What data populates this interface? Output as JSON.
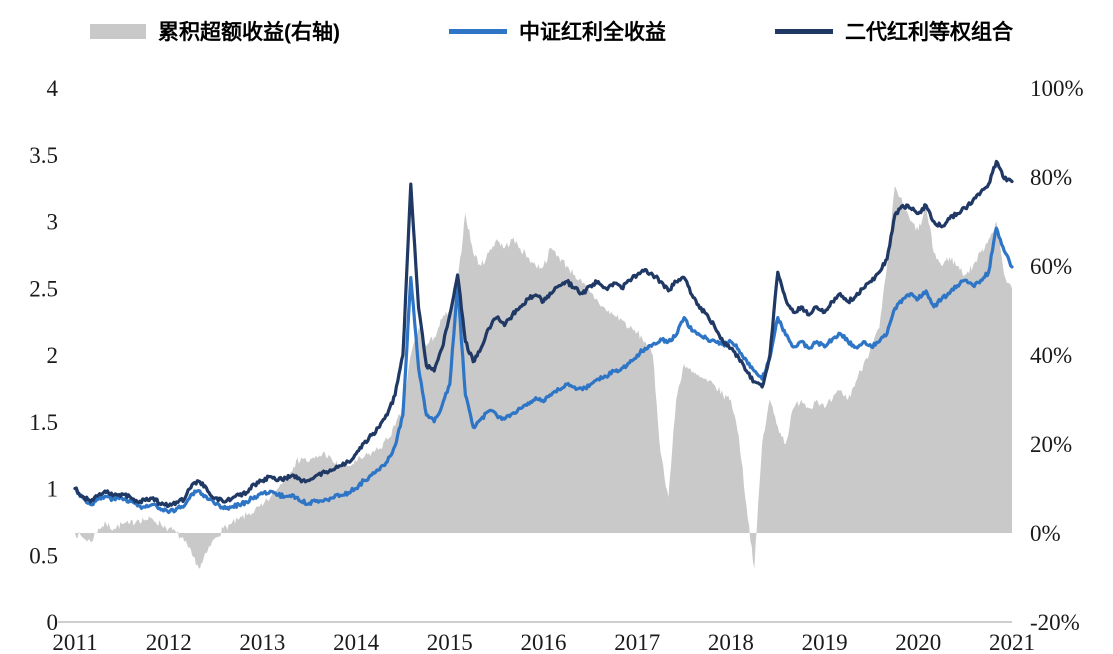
{
  "chart_data": {
    "type": "line",
    "title": "",
    "x_axis": {
      "tick_values": [
        2011,
        2012,
        2013,
        2014,
        2015,
        2016,
        2017,
        2018,
        2019,
        2020,
        2021
      ],
      "tick_labels": [
        "2011",
        "2012",
        "2013",
        "2014",
        "2015",
        "2016",
        "2017",
        "2018",
        "2019",
        "2020",
        "2021"
      ],
      "start_year": 2011,
      "end_year": 2021,
      "step_months": 1
    },
    "left_axis": {
      "min": 0,
      "max": 4,
      "tick_values": [
        0,
        0.5,
        1,
        1.5,
        2,
        2.5,
        3,
        3.5,
        4
      ],
      "tick_labels": [
        "0",
        "0.5",
        "1",
        "1.5",
        "2",
        "2.5",
        "3",
        "3.5",
        "4"
      ]
    },
    "right_axis": {
      "min": -20,
      "max": 100,
      "tick_values": [
        -20,
        0,
        20,
        40,
        60,
        80,
        100
      ],
      "tick_labels": [
        "-20%",
        "0%",
        "20%",
        "40%",
        "60%",
        "80%",
        "100%"
      ]
    },
    "legend_position": "top",
    "grid": false,
    "series": [
      {
        "name": "累积超额收益(右轴)",
        "kind": "area",
        "axis": "right",
        "color": "#c9c9c9",
        "values": [
          0,
          -1,
          -2,
          1,
          2,
          1,
          2,
          2,
          3,
          3,
          3,
          2,
          1,
          0,
          -2,
          -5,
          -8,
          -4,
          -1,
          1,
          2,
          3,
          4,
          5,
          6,
          8,
          10,
          13,
          15,
          17,
          16,
          17,
          18,
          16,
          15,
          15,
          16,
          17,
          18,
          19,
          21,
          24,
          28,
          40,
          46,
          42,
          44,
          48,
          50,
          56,
          72,
          63,
          60,
          63,
          66,
          64,
          66,
          64,
          62,
          60,
          60,
          64,
          62,
          60,
          58,
          56,
          54,
          52,
          50,
          49,
          48,
          46,
          45,
          43,
          40,
          18,
          8,
          30,
          38,
          36,
          35,
          34,
          33,
          31,
          30,
          22,
          6,
          -8,
          20,
          30,
          24,
          20,
          28,
          30,
          28,
          30,
          28,
          30,
          32,
          30,
          34,
          38,
          42,
          46,
          60,
          78,
          74,
          70,
          68,
          73,
          63,
          60,
          62,
          60,
          58,
          60,
          63,
          66,
          70,
          58,
          55
        ]
      },
      {
        "name": "中证红利全收益",
        "kind": "line",
        "axis": "left",
        "color": "#2e75c6",
        "values": [
          1.0,
          0.93,
          0.88,
          0.92,
          0.94,
          0.92,
          0.93,
          0.91,
          0.87,
          0.86,
          0.88,
          0.84,
          0.82,
          0.85,
          0.87,
          0.96,
          0.98,
          0.92,
          0.88,
          0.85,
          0.86,
          0.88,
          0.9,
          0.94,
          0.96,
          0.98,
          0.95,
          0.94,
          0.95,
          0.9,
          0.89,
          0.91,
          0.92,
          0.93,
          0.95,
          0.97,
          1.0,
          1.06,
          1.1,
          1.14,
          1.2,
          1.32,
          1.55,
          2.58,
          1.9,
          1.55,
          1.5,
          1.62,
          1.78,
          2.52,
          1.7,
          1.46,
          1.52,
          1.58,
          1.55,
          1.52,
          1.56,
          1.6,
          1.64,
          1.68,
          1.65,
          1.7,
          1.74,
          1.78,
          1.76,
          1.74,
          1.78,
          1.82,
          1.84,
          1.88,
          1.9,
          1.94,
          2.0,
          2.05,
          2.08,
          2.12,
          2.1,
          2.15,
          2.28,
          2.18,
          2.15,
          2.12,
          2.1,
          2.08,
          2.1,
          2.04,
          1.96,
          1.88,
          1.82,
          1.98,
          2.28,
          2.15,
          2.06,
          2.1,
          2.05,
          2.1,
          2.06,
          2.12,
          2.16,
          2.1,
          2.06,
          2.1,
          2.06,
          2.1,
          2.16,
          2.35,
          2.42,
          2.46,
          2.42,
          2.48,
          2.36,
          2.42,
          2.46,
          2.52,
          2.56,
          2.52,
          2.56,
          2.62,
          2.95,
          2.78,
          2.66
        ]
      },
      {
        "name": "二代红利等权组合",
        "kind": "line",
        "axis": "left",
        "color": "#1f3864",
        "values": [
          1.0,
          0.94,
          0.9,
          0.95,
          0.97,
          0.95,
          0.96,
          0.94,
          0.9,
          0.91,
          0.93,
          0.88,
          0.87,
          0.9,
          0.92,
          1.03,
          1.05,
          0.98,
          0.93,
          0.9,
          0.92,
          0.95,
          0.97,
          1.03,
          1.06,
          1.09,
          1.06,
          1.08,
          1.1,
          1.05,
          1.06,
          1.1,
          1.12,
          1.14,
          1.17,
          1.2,
          1.26,
          1.34,
          1.4,
          1.46,
          1.55,
          1.7,
          2.0,
          3.28,
          2.35,
          1.92,
          1.88,
          2.05,
          2.3,
          2.6,
          2.1,
          1.95,
          2.05,
          2.2,
          2.28,
          2.22,
          2.3,
          2.36,
          2.42,
          2.45,
          2.4,
          2.46,
          2.52,
          2.55,
          2.5,
          2.46,
          2.52,
          2.55,
          2.5,
          2.54,
          2.5,
          2.56,
          2.6,
          2.64,
          2.6,
          2.55,
          2.48,
          2.55,
          2.58,
          2.45,
          2.35,
          2.3,
          2.2,
          2.1,
          2.05,
          1.98,
          1.88,
          1.8,
          1.76,
          2.0,
          2.62,
          2.42,
          2.32,
          2.36,
          2.3,
          2.36,
          2.32,
          2.4,
          2.46,
          2.4,
          2.44,
          2.5,
          2.55,
          2.62,
          2.72,
          3.05,
          3.12,
          3.1,
          3.06,
          3.12,
          3.0,
          2.96,
          3.02,
          3.06,
          3.1,
          3.16,
          3.22,
          3.28,
          3.45,
          3.32,
          3.3
        ]
      }
    ]
  }
}
